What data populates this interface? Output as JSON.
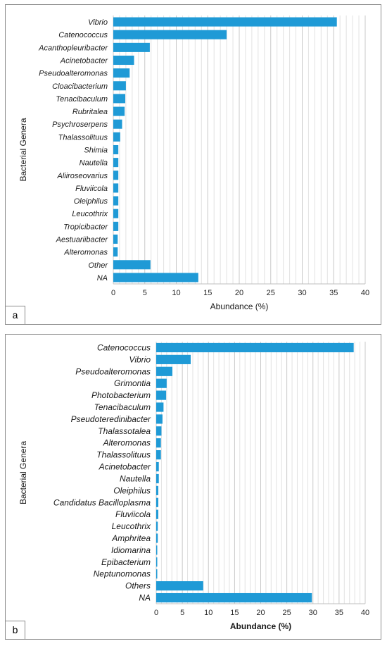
{
  "chart_data": [
    {
      "type": "bar",
      "orientation": "horizontal",
      "panel_label": "a",
      "xlabel": "Abundance (%)",
      "ylabel": "Bacterial Genera",
      "xlim": [
        0,
        40
      ],
      "xticks": [
        0,
        5,
        10,
        15,
        20,
        25,
        30,
        35,
        40
      ],
      "grid": true,
      "bar_color": "#1f9ad6",
      "categories": [
        "Vibrio",
        "Catenococcus",
        "Acanthopleuribacter",
        "Acinetobacter",
        "Pseudoalteromonas",
        "Cloacibacterium",
        "Tenacibaculum",
        "Rubritalea",
        "Psychroserpens",
        "Thalassolituus",
        "Shimia",
        "Nautella",
        "Aliiroseovarius",
        "Fluviicola",
        "Oleiphilus",
        "Leucothrix",
        "Tropicibacter",
        "Aestuariibacter",
        "Alteromonas",
        "Other",
        "NA"
      ],
      "values": [
        35.5,
        18.0,
        5.8,
        3.3,
        2.6,
        2.0,
        1.9,
        1.8,
        1.4,
        1.1,
        0.8,
        0.8,
        0.8,
        0.8,
        0.8,
        0.8,
        0.8,
        0.7,
        0.7,
        5.9,
        13.5
      ]
    },
    {
      "type": "bar",
      "orientation": "horizontal",
      "panel_label": "b",
      "xlabel": "Abundance (%)",
      "ylabel": "Bacterial Genera",
      "xlim": [
        0,
        40
      ],
      "xticks": [
        0,
        5,
        10,
        15,
        20,
        25,
        30,
        35,
        40
      ],
      "grid": true,
      "bar_color": "#1f9ad6",
      "categories": [
        "Catenococcus",
        "Vibrio",
        "Pseudoalteromonas",
        "Grimontia",
        "Photobacterium",
        "Tenacibaculum",
        "Pseudoteredinibacter",
        "Thalassotalea",
        "Alteromonas",
        "Thalassolituus",
        "Acinetobacter",
        "Nautella",
        "Oleiphilus",
        "Candidatus Bacilloplasma",
        "Fluviicola",
        "Leucothrix",
        "Amphritea",
        "Idiomarina",
        "Epibacterium",
        "Neptunomonas",
        "Others",
        "NA"
      ],
      "values": [
        37.8,
        6.6,
        3.1,
        2.0,
        1.9,
        1.4,
        1.2,
        1.0,
        0.9,
        0.9,
        0.5,
        0.5,
        0.4,
        0.4,
        0.4,
        0.3,
        0.3,
        0.2,
        0.2,
        0.2,
        9.0,
        29.8
      ]
    }
  ]
}
